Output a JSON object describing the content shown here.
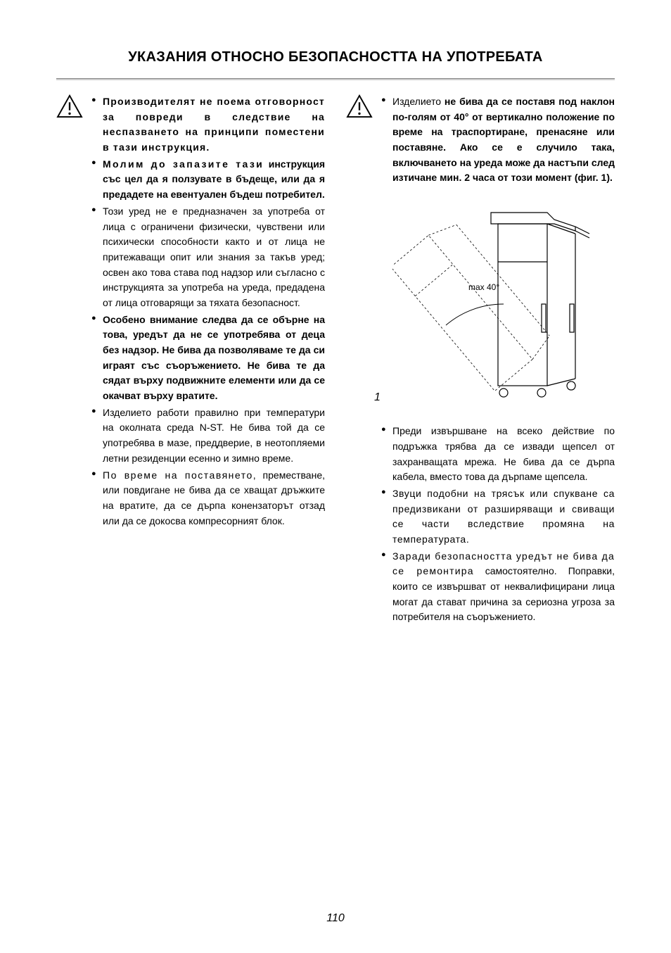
{
  "page": {
    "title": "УКАЗАНИЯ ОТНОСНО БЕЗОПАСНОСТТА НА УПОТРЕБАТА",
    "number": "110"
  },
  "left": {
    "items": [
      {
        "bold": true,
        "spaced": true,
        "html": "Производителят не поема отговорност за повреди в следствие на неспазването на принципи поместени в тази инструкция."
      },
      {
        "bold": true,
        "spaced": false,
        "html": "Молим до запазите тази инструкция със цел да я ползувате в бъдеще, или да я предадете на евентуален бъдеш потребител."
      },
      {
        "bold": false,
        "spaced": false,
        "html": "Този уред не е предназначен за употреба от лица с ограничени физически, чувствени или психически способности както и от лица не притежаващи опит или знания за такъв уред; освен ако това става под надзор или съгласно с инструкцията за употреба на уреда, предадена от лица отговарящи за тяхата безопасност."
      },
      {
        "bold": true,
        "spaced": false,
        "html": "Особено внимание следва да се обърне на това, уредът да не се употребява от деца без надзор. Не бива да позволяваме те да си играят със съоръжението. Не бива те да сядат върху подвижните елементи или да се окачват върху вратите."
      },
      {
        "bold": false,
        "spaced": false,
        "html": "Изделието работи правилно при температури на околната среда N-ST. Не бива той да се употребява в мазе, преддверие, в неотопляеми летни резиденции есенно и зимно време."
      },
      {
        "bold": false,
        "spaced": false,
        "html": "По време на поставянето, преместване, или повдигане не бива да се хващат дръжките на вратите, да се дърпа конензаторът отзад или да се докосва компресорният блок."
      }
    ]
  },
  "right": {
    "top_item": {
      "pre": "Изделието ",
      "bold": "не бива да се поставя под наклон по-голям от 40° от вертикално положение по време на траспортиране, пренасяне или поставяне. Ако се е случило така, включването на уреда може да настъпи след изтичане мин. 2 часа от този момент (фиг. 1)."
    },
    "figure": {
      "angle_label": "max 40°",
      "number": "1"
    },
    "items": [
      "Преди извършване на всеко действие по подръжка трябва да се извади щепсел от захранващата мрежа. Не бива да се дърпа кабела, вместо това да дърпаме щепсела.",
      "Звуци подобни на трясък или спукване са предизвикани от разширяващи и свиващи се части вследствие промяна на температурата.",
      "Заради безопасността уредът не бива да се ремонтира самостоятелно. Поправки, които се извършват от неквалифицирани лица могат да стават причина за сериозна угроза за потребителя на съоръжението."
    ]
  },
  "colors": {
    "rule": "#cccccc",
    "stroke": "#000000",
    "bg": "#ffffff"
  }
}
